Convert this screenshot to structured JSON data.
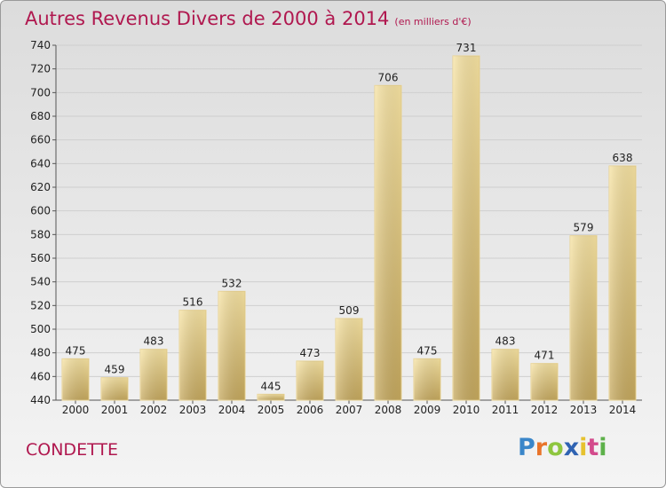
{
  "title": "Autres Revenus Divers de 2000 à 2014",
  "unit_note": "(en milliers d'€)",
  "place": "CONDETTE",
  "logo": "Proxiti",
  "colors": {
    "title": "#b0184f",
    "bar_light": "#f5df9a",
    "bar_dark": "#c8aa62",
    "grid": "#c8c8c8"
  },
  "chart_data": {
    "type": "bar",
    "title": "Autres Revenus Divers de 2000 à 2014",
    "subtitle": "(en milliers d'€)",
    "categories": [
      "2000",
      "2001",
      "2002",
      "2003",
      "2004",
      "2005",
      "2006",
      "2007",
      "2008",
      "2009",
      "2010",
      "2011",
      "2012",
      "2013",
      "2014"
    ],
    "values": [
      475,
      459,
      483,
      516,
      532,
      445,
      473,
      509,
      706,
      475,
      731,
      483,
      471,
      579,
      638
    ],
    "ylim": [
      440,
      740
    ],
    "yticks": [
      440,
      460,
      480,
      500,
      520,
      540,
      560,
      580,
      600,
      620,
      640,
      660,
      680,
      700,
      720,
      740
    ],
    "grid": true,
    "data_labels": true
  }
}
